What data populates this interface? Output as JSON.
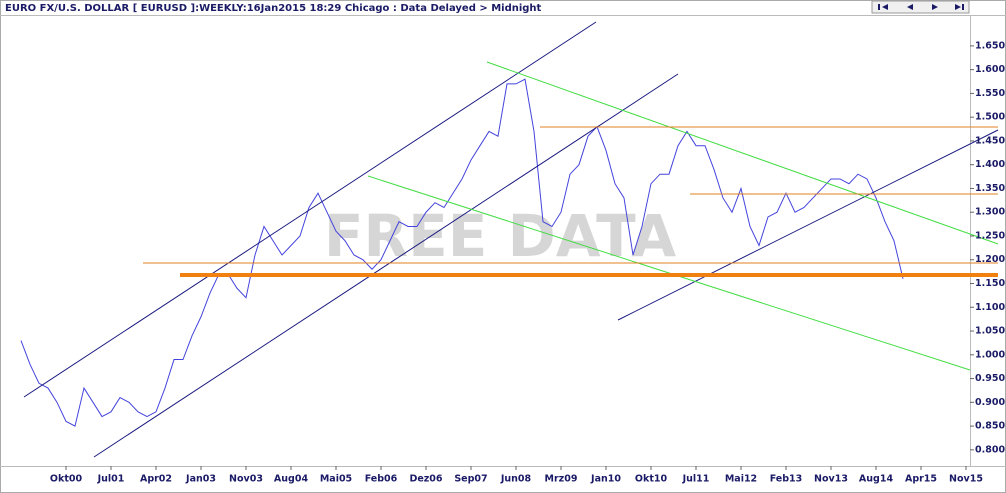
{
  "chart_data": {
    "type": "line",
    "title": "EURO FX/U.S. DOLLAR [ EURUSD ]:WEEKLY:16Jan2015 18:29 Chicago : Data Delayed > Midnight",
    "watermark": "FREE DATA",
    "color": "#4444dd",
    "categories": [
      null,
      null,
      null,
      null,
      null,
      "Okt00",
      null,
      null,
      null,
      null,
      "Jul01",
      null,
      null,
      null,
      null,
      "Apr02",
      null,
      null,
      null,
      null,
      "Jan03",
      null,
      null,
      null,
      null,
      "Nov03",
      null,
      null,
      null,
      null,
      "Aug04",
      null,
      null,
      null,
      null,
      "Mai05",
      null,
      null,
      null,
      null,
      "Feb06",
      null,
      null,
      null,
      null,
      "Dez06",
      null,
      null,
      null,
      null,
      "Sep07",
      null,
      null,
      null,
      null,
      "Jun08",
      null,
      null,
      null,
      null,
      "Mrz09",
      null,
      null,
      null,
      null,
      "Jan10",
      null,
      null,
      null,
      null,
      "Okt10",
      null,
      null,
      null,
      null,
      "Jul11",
      null,
      null,
      null,
      null,
      "Mai12",
      null,
      null,
      null,
      null,
      "Feb13",
      null,
      null,
      null,
      null,
      "Nov13",
      null,
      null,
      null,
      null,
      "Aug14",
      null,
      null,
      null,
      null,
      "Apr15",
      null,
      null,
      null,
      null,
      "Nov15"
    ],
    "values": [
      1.03,
      0.98,
      0.94,
      0.93,
      0.9,
      0.86,
      0.85,
      0.93,
      0.9,
      0.87,
      0.88,
      0.91,
      0.9,
      0.88,
      0.87,
      0.88,
      0.93,
      0.99,
      0.99,
      1.04,
      1.08,
      1.13,
      1.17,
      1.17,
      1.14,
      1.12,
      1.21,
      1.27,
      1.24,
      1.21,
      1.23,
      1.25,
      1.31,
      1.34,
      1.3,
      1.26,
      1.24,
      1.21,
      1.2,
      1.18,
      1.2,
      1.24,
      1.28,
      1.27,
      1.27,
      1.3,
      1.32,
      1.31,
      1.34,
      1.37,
      1.41,
      1.44,
      1.47,
      1.46,
      1.57,
      1.57,
      1.58,
      1.47,
      1.28,
      1.27,
      1.3,
      1.38,
      1.4,
      1.46,
      1.48,
      1.43,
      1.36,
      1.33,
      1.21,
      1.27,
      1.36,
      1.38,
      1.38,
      1.44,
      1.47,
      1.44,
      1.44,
      1.39,
      1.33,
      1.3,
      1.35,
      1.27,
      1.23,
      1.29,
      1.3,
      1.34,
      1.3,
      1.31,
      1.33,
      1.35,
      1.37,
      1.37,
      1.36,
      1.38,
      1.37,
      1.33,
      1.28,
      1.24,
      1.16,
      null,
      null,
      null,
      null,
      null,
      null,
      null
    ],
    "ylim": [
      0.766,
      1.715
    ],
    "yticks": [
      {
        "value": 0.8,
        "label": "0.800"
      },
      {
        "value": 0.85,
        "label": "0.850"
      },
      {
        "value": 0.9,
        "label": "0.900"
      },
      {
        "value": 0.95,
        "label": "0.950"
      },
      {
        "value": 1.0,
        "label": "1.000"
      },
      {
        "value": 1.05,
        "label": "1.050"
      },
      {
        "value": 1.1,
        "label": "1.100"
      },
      {
        "value": 1.15,
        "label": "1.150"
      },
      {
        "value": 1.2,
        "label": "1.200"
      },
      {
        "value": 1.25,
        "label": "1.250"
      },
      {
        "value": 1.3,
        "label": "1.300"
      },
      {
        "value": 1.35,
        "label": "1.350"
      },
      {
        "value": 1.4,
        "label": "1.400"
      },
      {
        "value": 1.45,
        "label": "1.450"
      },
      {
        "value": 1.5,
        "label": "1.500"
      },
      {
        "value": 1.55,
        "label": "1.550"
      },
      {
        "value": 1.6,
        "label": "1.600"
      },
      {
        "value": 1.65,
        "label": "1.650"
      }
    ]
  }
}
